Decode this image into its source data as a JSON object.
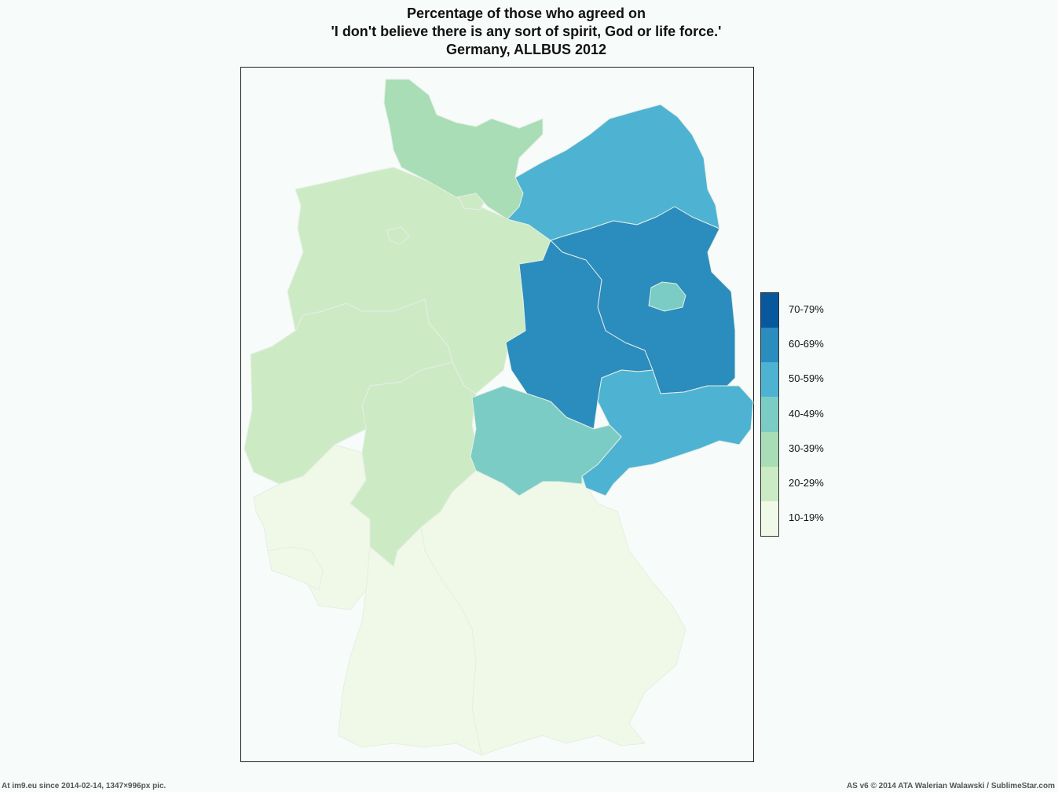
{
  "title": {
    "line1": "Percentage of those who agreed on",
    "line2": "'I don't believe there is any sort of spirit, God or life force.'",
    "line3": "Germany, ALLBUS 2012"
  },
  "legend": {
    "classes": [
      {
        "label": "70-79%",
        "color": "#08589e"
      },
      {
        "label": "60-69%",
        "color": "#2b8cbe"
      },
      {
        "label": "50-59%",
        "color": "#4eb3d3"
      },
      {
        "label": "40-49%",
        "color": "#7bccc4"
      },
      {
        "label": "30-39%",
        "color": "#a8ddb5"
      },
      {
        "label": "20-29%",
        "color": "#ccebc5"
      },
      {
        "label": "10-19%",
        "color": "#f0f9e8"
      }
    ]
  },
  "regions": [
    {
      "id": "schleswig-holstein",
      "class": "30-39%"
    },
    {
      "id": "hamburg",
      "class": "20-29%"
    },
    {
      "id": "mecklenburg-vorpommern",
      "class": "50-59%"
    },
    {
      "id": "lower-saxony",
      "class": "20-29%"
    },
    {
      "id": "bremen",
      "class": "20-29%"
    },
    {
      "id": "north-rhine-westphalia",
      "class": "20-29%"
    },
    {
      "id": "hesse",
      "class": "20-29%"
    },
    {
      "id": "saxony-anhalt",
      "class": "60-69%"
    },
    {
      "id": "brandenburg",
      "class": "60-69%"
    },
    {
      "id": "berlin",
      "class": "40-49%"
    },
    {
      "id": "thuringia",
      "class": "40-49%"
    },
    {
      "id": "saxony",
      "class": "50-59%"
    },
    {
      "id": "rhineland-palatinate",
      "class": "10-19%"
    },
    {
      "id": "saarland",
      "class": "10-19%"
    },
    {
      "id": "baden-wuerttemberg",
      "class": "10-19%"
    },
    {
      "id": "bavaria",
      "class": "10-19%"
    }
  ],
  "footer": {
    "left": "At im9.eu  since 2014-02-14, 1347×996px pic.",
    "right": "AS v6 © 2014 ATA Walerian Walawski / SublimeStar.com"
  }
}
